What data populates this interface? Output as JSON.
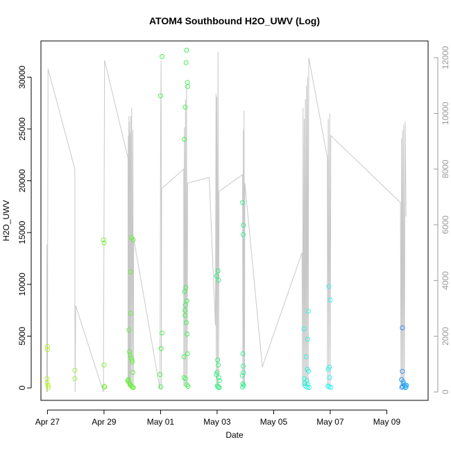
{
  "chart_data": {
    "type": "scatter",
    "title": "ATOM4 Southbound H2O_UWV (Log)",
    "xlabel": "Date",
    "ylabel": "H2O_UWV",
    "xlim": [
      26.77,
      40.46
    ],
    "ylim": [
      -1200,
      33500
    ],
    "y2lim": [
      -300,
      12600
    ],
    "grid": false,
    "legend": "none",
    "x_ticks": [
      {
        "value": 27,
        "label": "Apr 27"
      },
      {
        "value": 29,
        "label": "Apr 29"
      },
      {
        "value": 31,
        "label": "May 01"
      },
      {
        "value": 33,
        "label": "May 03"
      },
      {
        "value": 35,
        "label": "May 05"
      },
      {
        "value": 37,
        "label": "May 07"
      },
      {
        "value": 39,
        "label": "May 09"
      }
    ],
    "y_ticks": [
      0,
      5000,
      10000,
      15000,
      20000,
      25000,
      30000
    ],
    "y2_ticks": [
      0,
      2000,
      4000,
      6000,
      8000,
      10000,
      12000
    ],
    "series": [
      {
        "type": "scatter",
        "axis": "left",
        "points": [
          {
            "x": 27.0,
            "y": 4000,
            "color": "#b8f02a"
          },
          {
            "x": 27.0,
            "y": 3700,
            "color": "#b8f02a"
          },
          {
            "x": 26.98,
            "y": 900,
            "color": "#b8f02a"
          },
          {
            "x": 26.99,
            "y": 500,
            "color": "#b8f02a"
          },
          {
            "x": 27.02,
            "y": 250,
            "color": "#b8f02a"
          },
          {
            "x": 27.03,
            "y": 30,
            "color": "#b8f02a"
          },
          {
            "x": 27.97,
            "y": 1700,
            "color": "#9cf03a"
          },
          {
            "x": 27.97,
            "y": 900,
            "color": "#9cf03a"
          },
          {
            "x": 28.98,
            "y": 14300,
            "color": "#7ef03a"
          },
          {
            "x": 29.0,
            "y": 14000,
            "color": "#7ef03a"
          },
          {
            "x": 29.0,
            "y": 2200,
            "color": "#7ef03a"
          },
          {
            "x": 29.01,
            "y": 150,
            "color": "#7ef03a"
          },
          {
            "x": 29.03,
            "y": 100,
            "color": "#7ef03a"
          },
          {
            "x": 29.98,
            "y": 14500,
            "color": "#66f03c"
          },
          {
            "x": 30.03,
            "y": 14300,
            "color": "#66f03c"
          },
          {
            "x": 29.93,
            "y": 11200,
            "color": "#66f03c"
          },
          {
            "x": 29.95,
            "y": 7200,
            "color": "#66f03c"
          },
          {
            "x": 29.88,
            "y": 5600,
            "color": "#66f03c"
          },
          {
            "x": 29.9,
            "y": 3500,
            "color": "#66f03c"
          },
          {
            "x": 29.92,
            "y": 3200,
            "color": "#66f03c"
          },
          {
            "x": 29.96,
            "y": 2900,
            "color": "#66f03c"
          },
          {
            "x": 29.99,
            "y": 2700,
            "color": "#66f03c"
          },
          {
            "x": 30.0,
            "y": 2500,
            "color": "#66f03c"
          },
          {
            "x": 30.02,
            "y": 1500,
            "color": "#66f03c"
          },
          {
            "x": 29.86,
            "y": 800,
            "color": "#66f03c"
          },
          {
            "x": 29.84,
            "y": 700,
            "color": "#66f03c"
          },
          {
            "x": 29.87,
            "y": 600,
            "color": "#66f03c"
          },
          {
            "x": 29.91,
            "y": 400,
            "color": "#66f03c"
          },
          {
            "x": 29.94,
            "y": 250,
            "color": "#66f03c"
          },
          {
            "x": 29.97,
            "y": 150,
            "color": "#66f03c"
          },
          {
            "x": 30.01,
            "y": 80,
            "color": "#66f03c"
          },
          {
            "x": 30.04,
            "y": 30,
            "color": "#66f03c"
          },
          {
            "x": 31.05,
            "y": 32000,
            "color": "#48f04a"
          },
          {
            "x": 31.0,
            "y": 28200,
            "color": "#48f04a"
          },
          {
            "x": 31.05,
            "y": 5300,
            "color": "#48f04a"
          },
          {
            "x": 31.02,
            "y": 3800,
            "color": "#48f04a"
          },
          {
            "x": 30.98,
            "y": 1300,
            "color": "#48f04a"
          },
          {
            "x": 31.01,
            "y": 100,
            "color": "#48f04a"
          },
          {
            "x": 31.92,
            "y": 32600,
            "color": "#40f050"
          },
          {
            "x": 31.9,
            "y": 31400,
            "color": "#40f050"
          },
          {
            "x": 31.95,
            "y": 29500,
            "color": "#40f050"
          },
          {
            "x": 31.96,
            "y": 29100,
            "color": "#40f050"
          },
          {
            "x": 31.87,
            "y": 27100,
            "color": "#40f050"
          },
          {
            "x": 31.84,
            "y": 24000,
            "color": "#40f050"
          },
          {
            "x": 31.89,
            "y": 9700,
            "color": "#40f050"
          },
          {
            "x": 31.85,
            "y": 9300,
            "color": "#40f050"
          },
          {
            "x": 31.93,
            "y": 8400,
            "color": "#40f050"
          },
          {
            "x": 31.88,
            "y": 8000,
            "color": "#40f050"
          },
          {
            "x": 31.86,
            "y": 7500,
            "color": "#40f050"
          },
          {
            "x": 31.87,
            "y": 7000,
            "color": "#40f050"
          },
          {
            "x": 31.91,
            "y": 6300,
            "color": "#40f050"
          },
          {
            "x": 31.94,
            "y": 5200,
            "color": "#40f050"
          },
          {
            "x": 31.95,
            "y": 3300,
            "color": "#40f050"
          },
          {
            "x": 31.83,
            "y": 3000,
            "color": "#40f050"
          },
          {
            "x": 31.83,
            "y": 1000,
            "color": "#40f050"
          },
          {
            "x": 31.88,
            "y": 900,
            "color": "#40f050"
          },
          {
            "x": 31.93,
            "y": 300,
            "color": "#40f050"
          },
          {
            "x": 31.97,
            "y": 150,
            "color": "#40f050"
          },
          {
            "x": 33.03,
            "y": 11300,
            "color": "#30f07a"
          },
          {
            "x": 32.98,
            "y": 10800,
            "color": "#30f07a"
          },
          {
            "x": 33.05,
            "y": 10400,
            "color": "#30f07a"
          },
          {
            "x": 33.02,
            "y": 2700,
            "color": "#30f07a"
          },
          {
            "x": 33.04,
            "y": 2200,
            "color": "#30f07a"
          },
          {
            "x": 33.0,
            "y": 1500,
            "color": "#30f07a"
          },
          {
            "x": 32.97,
            "y": 1300,
            "color": "#30f07a"
          },
          {
            "x": 33.06,
            "y": 1000,
            "color": "#30f07a"
          },
          {
            "x": 33.08,
            "y": 700,
            "color": "#30f07a"
          },
          {
            "x": 33.01,
            "y": 200,
            "color": "#30f07a"
          },
          {
            "x": 33.04,
            "y": 100,
            "color": "#30f07a"
          },
          {
            "x": 33.07,
            "y": 30,
            "color": "#30f07a"
          },
          {
            "x": 33.9,
            "y": 17900,
            "color": "#30f08c"
          },
          {
            "x": 33.93,
            "y": 15700,
            "color": "#30f08c"
          },
          {
            "x": 33.92,
            "y": 14800,
            "color": "#30f08c"
          },
          {
            "x": 33.91,
            "y": 3300,
            "color": "#30f08c"
          },
          {
            "x": 33.92,
            "y": 2100,
            "color": "#30f08c"
          },
          {
            "x": 33.93,
            "y": 1500,
            "color": "#30f08c"
          },
          {
            "x": 33.89,
            "y": 1200,
            "color": "#30f08c"
          },
          {
            "x": 33.91,
            "y": 400,
            "color": "#30f08c"
          },
          {
            "x": 33.94,
            "y": 250,
            "color": "#30f08c"
          },
          {
            "x": 33.9,
            "y": 80,
            "color": "#30f08c"
          },
          {
            "x": 36.22,
            "y": 7400,
            "color": "#30f0dc"
          },
          {
            "x": 36.07,
            "y": 5700,
            "color": "#30f0dc"
          },
          {
            "x": 36.2,
            "y": 4700,
            "color": "#30f0dc"
          },
          {
            "x": 36.15,
            "y": 3000,
            "color": "#30f0dc"
          },
          {
            "x": 36.19,
            "y": 1800,
            "color": "#30f0dc"
          },
          {
            "x": 36.23,
            "y": 1600,
            "color": "#30f0dc"
          },
          {
            "x": 36.08,
            "y": 900,
            "color": "#30f0dc"
          },
          {
            "x": 36.17,
            "y": 700,
            "color": "#30f0dc"
          },
          {
            "x": 36.1,
            "y": 450,
            "color": "#30f0dc"
          },
          {
            "x": 36.21,
            "y": 350,
            "color": "#30f0dc"
          },
          {
            "x": 36.12,
            "y": 200,
            "color": "#30f0dc"
          },
          {
            "x": 36.18,
            "y": 80,
            "color": "#30f0dc"
          },
          {
            "x": 36.25,
            "y": 30,
            "color": "#30f0dc"
          },
          {
            "x": 36.95,
            "y": 9800,
            "color": "#30f0f0"
          },
          {
            "x": 37.0,
            "y": 8500,
            "color": "#30f0f0"
          },
          {
            "x": 36.97,
            "y": 2000,
            "color": "#30f0f0"
          },
          {
            "x": 36.93,
            "y": 1800,
            "color": "#30f0f0"
          },
          {
            "x": 36.98,
            "y": 1000,
            "color": "#30f0f0"
          },
          {
            "x": 36.92,
            "y": 200,
            "color": "#30f0f0"
          },
          {
            "x": 36.96,
            "y": 100,
            "color": "#30f0f0"
          },
          {
            "x": 37.02,
            "y": 50,
            "color": "#30f0f0"
          },
          {
            "x": 39.55,
            "y": 5800,
            "color": "#2a8cf0"
          },
          {
            "x": 39.55,
            "y": 1600,
            "color": "#2a8cf0"
          },
          {
            "x": 39.52,
            "y": 800,
            "color": "#2a8cf0"
          },
          {
            "x": 39.58,
            "y": 600,
            "color": "#30b0f0"
          },
          {
            "x": 39.6,
            "y": 400,
            "color": "#30b0f0"
          },
          {
            "x": 39.65,
            "y": 300,
            "color": "#30b0f0"
          },
          {
            "x": 39.7,
            "y": 250,
            "color": "#30b0f0"
          },
          {
            "x": 39.62,
            "y": 200,
            "color": "#30b0f0"
          },
          {
            "x": 39.56,
            "y": 150,
            "color": "#2a8cf0"
          },
          {
            "x": 39.68,
            "y": 100,
            "color": "#30b0f0"
          },
          {
            "x": 39.53,
            "y": 50,
            "color": "#2a8cf0"
          },
          {
            "x": 39.66,
            "y": 30,
            "color": "#30b0f0"
          }
        ]
      },
      {
        "type": "line",
        "axis": "right",
        "color": "#c8c8c8",
        "points": [
          [
            26.97,
            0
          ],
          [
            26.98,
            5300
          ],
          [
            27.0,
            0
          ],
          [
            27.02,
            11600
          ],
          [
            27.97,
            8000
          ],
          [
            27.97,
            3100
          ],
          [
            27.98,
            0
          ],
          [
            28.0,
            3100
          ],
          [
            28.98,
            0
          ],
          [
            29.02,
            11900
          ],
          [
            29.85,
            8400
          ],
          [
            29.85,
            200
          ],
          [
            29.86,
            9200
          ],
          [
            29.87,
            200
          ],
          [
            29.88,
            9900
          ],
          [
            29.89,
            200
          ],
          [
            29.9,
            9700
          ],
          [
            29.91,
            200
          ],
          [
            29.92,
            9300
          ],
          [
            29.93,
            200
          ],
          [
            29.95,
            9900
          ],
          [
            29.96,
            200
          ],
          [
            29.98,
            10200
          ],
          [
            30.0,
            200
          ],
          [
            30.02,
            9400
          ],
          [
            30.04,
            200
          ],
          [
            30.05,
            5500
          ],
          [
            30.98,
            100
          ],
          [
            31.0,
            9000
          ],
          [
            31.02,
            11900
          ],
          [
            31.03,
            100
          ],
          [
            31.04,
            7300
          ],
          [
            31.82,
            8000
          ],
          [
            31.82,
            200
          ],
          [
            31.84,
            9500
          ],
          [
            31.86,
            200
          ],
          [
            31.88,
            10500
          ],
          [
            31.9,
            200
          ],
          [
            31.92,
            11000
          ],
          [
            31.94,
            200
          ],
          [
            31.96,
            7500
          ],
          [
            32.72,
            7700
          ],
          [
            32.94,
            2400
          ],
          [
            32.95,
            6300
          ],
          [
            32.96,
            10700
          ],
          [
            32.97,
            200
          ],
          [
            32.99,
            10600
          ],
          [
            33.01,
            200
          ],
          [
            33.03,
            12200
          ],
          [
            33.05,
            200
          ],
          [
            33.07,
            7200
          ],
          [
            33.9,
            7800
          ],
          [
            33.91,
            200
          ],
          [
            33.93,
            9400
          ],
          [
            33.94,
            200
          ],
          [
            33.95,
            10100
          ],
          [
            33.97,
            200
          ],
          [
            33.98,
            7500
          ],
          [
            34.6,
            900
          ],
          [
            36.0,
            5000
          ],
          [
            36.02,
            200
          ],
          [
            36.04,
            10200
          ],
          [
            36.06,
            200
          ],
          [
            36.08,
            9800
          ],
          [
            36.1,
            200
          ],
          [
            36.12,
            10500
          ],
          [
            36.14,
            200
          ],
          [
            36.16,
            11000
          ],
          [
            36.18,
            200
          ],
          [
            36.2,
            11300
          ],
          [
            36.22,
            200
          ],
          [
            36.24,
            12000
          ],
          [
            36.9,
            8400
          ],
          [
            36.9,
            200
          ],
          [
            36.93,
            9800
          ],
          [
            36.95,
            200
          ],
          [
            36.98,
            10000
          ],
          [
            37.0,
            200
          ],
          [
            37.02,
            9200
          ],
          [
            39.48,
            6800
          ],
          [
            39.5,
            200
          ],
          [
            39.52,
            9100
          ],
          [
            39.54,
            200
          ],
          [
            39.56,
            9400
          ],
          [
            39.58,
            200
          ],
          [
            39.6,
            9600
          ],
          [
            39.62,
            200
          ],
          [
            39.65,
            9700
          ],
          [
            39.68,
            6300
          ]
        ]
      }
    ]
  }
}
